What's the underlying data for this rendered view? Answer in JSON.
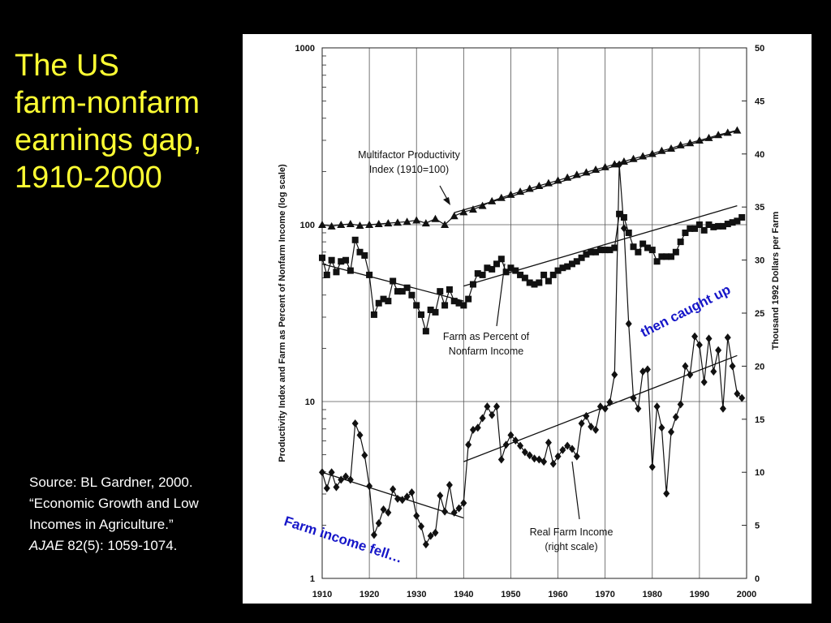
{
  "slide": {
    "title_lines": [
      "The US",
      "farm-nonfarm",
      "earnings gap,",
      "1910-2000"
    ],
    "source": {
      "line1": "Source: BL Gardner, 2000.",
      "line2": "“Economic Growth and Low",
      "line3": "Incomes in Agriculture.”",
      "journal": "AJAE",
      "citation": " 82(5): 1059-1074."
    }
  },
  "chart_data": {
    "type": "line",
    "x_ticks": [
      1910,
      1920,
      1930,
      1940,
      1950,
      1960,
      1970,
      1980,
      1990,
      2000
    ],
    "xlim": [
      1910,
      2000
    ],
    "y_left": {
      "label": "Productivity Index and Farm as Percent of Nonfarm Income (log scale)",
      "scale": "log",
      "ticks": [
        1,
        10,
        100,
        1000
      ],
      "lim": [
        1,
        1000
      ]
    },
    "y_right": {
      "label": "Thousand 1992 Dollars per Farm",
      "ticks": [
        0,
        5,
        10,
        15,
        20,
        25,
        30,
        35,
        40,
        45,
        50
      ],
      "lim": [
        0,
        50
      ]
    },
    "annotations": {
      "productivity": [
        "Multifactor Productivity",
        "Index (1910=100)"
      ],
      "farm_pct": [
        "Farm as Percent of",
        "Nonfarm Income"
      ],
      "real_income": [
        "Real Farm Income",
        "(right scale)"
      ],
      "fell": "Farm income fell…",
      "caught_up": "then caught up"
    },
    "series": [
      {
        "name": "Multifactor Productivity Index (1910=100)",
        "axis": "left",
        "marker": "triangle",
        "x": [
          1910,
          1912,
          1914,
          1916,
          1918,
          1920,
          1922,
          1924,
          1926,
          1928,
          1930,
          1932,
          1934,
          1936,
          1938,
          1940,
          1942,
          1944,
          1946,
          1948,
          1950,
          1952,
          1954,
          1956,
          1958,
          1960,
          1962,
          1964,
          1966,
          1968,
          1970,
          1972,
          1974,
          1976,
          1978,
          1980,
          1982,
          1984,
          1986,
          1988,
          1990,
          1992,
          1994,
          1996,
          1998
        ],
        "values": [
          100,
          98,
          100,
          101,
          99,
          100,
          101,
          102,
          103,
          104,
          106,
          102,
          108,
          100,
          112,
          118,
          122,
          128,
          136,
          142,
          148,
          154,
          160,
          166,
          172,
          178,
          185,
          192,
          198,
          205,
          212,
          220,
          228,
          236,
          244,
          252,
          262,
          270,
          282,
          290,
          300,
          310,
          322,
          332,
          342
        ]
      },
      {
        "name": "Farm as Percent of Nonfarm Income",
        "axis": "left",
        "marker": "square",
        "x": [
          1910,
          1911,
          1912,
          1913,
          1914,
          1915,
          1916,
          1917,
          1918,
          1919,
          1920,
          1921,
          1922,
          1923,
          1924,
          1925,
          1926,
          1927,
          1928,
          1929,
          1930,
          1931,
          1932,
          1933,
          1934,
          1935,
          1936,
          1937,
          1938,
          1939,
          1940,
          1941,
          1942,
          1943,
          1944,
          1945,
          1946,
          1947,
          1948,
          1949,
          1950,
          1951,
          1952,
          1953,
          1954,
          1955,
          1956,
          1957,
          1958,
          1959,
          1960,
          1961,
          1962,
          1963,
          1964,
          1965,
          1966,
          1967,
          1968,
          1969,
          1970,
          1971,
          1972,
          1973,
          1974,
          1975,
          1976,
          1977,
          1978,
          1979,
          1980,
          1981,
          1982,
          1983,
          1984,
          1985,
          1986,
          1987,
          1988,
          1989,
          1990,
          1991,
          1992,
          1993,
          1994,
          1995,
          1996,
          1997,
          1998,
          1999
        ],
        "values": [
          65,
          52,
          63,
          54,
          62,
          63,
          55,
          82,
          70,
          67,
          52,
          31,
          36,
          38,
          37,
          48,
          42,
          42,
          44,
          40,
          35,
          31,
          25,
          33,
          32,
          42,
          35,
          43,
          37,
          36,
          35,
          38,
          46,
          53,
          52,
          57,
          56,
          60,
          64,
          54,
          57,
          55,
          52,
          50,
          47,
          46,
          47,
          52,
          48,
          52,
          55,
          57,
          58,
          60,
          62,
          65,
          68,
          70,
          70,
          72,
          72,
          72,
          74,
          115,
          110,
          90,
          75,
          70,
          78,
          74,
          72,
          62,
          66,
          66,
          66,
          70,
          80,
          90,
          95,
          95,
          100,
          93,
          100,
          97,
          98,
          98,
          101,
          103,
          105,
          110
        ]
      },
      {
        "name": "Real Farm Income (right scale)",
        "axis": "right",
        "marker": "diamond",
        "x": [
          1910,
          1911,
          1912,
          1913,
          1914,
          1915,
          1916,
          1917,
          1918,
          1919,
          1920,
          1921,
          1922,
          1923,
          1924,
          1925,
          1926,
          1927,
          1928,
          1929,
          1930,
          1931,
          1932,
          1933,
          1934,
          1935,
          1936,
          1937,
          1938,
          1939,
          1940,
          1941,
          1942,
          1943,
          1944,
          1945,
          1946,
          1947,
          1948,
          1949,
          1950,
          1951,
          1952,
          1953,
          1954,
          1955,
          1956,
          1957,
          1958,
          1959,
          1960,
          1961,
          1962,
          1963,
          1964,
          1965,
          1966,
          1967,
          1968,
          1969,
          1970,
          1971,
          1972,
          1973,
          1974,
          1975,
          1976,
          1977,
          1978,
          1979,
          1980,
          1981,
          1982,
          1983,
          1984,
          1985,
          1986,
          1987,
          1988,
          1989,
          1990,
          1991,
          1992,
          1993,
          1994,
          1995,
          1996,
          1997,
          1998,
          1999
        ],
        "values": [
          10,
          8.5,
          10,
          8.6,
          9.3,
          9.6,
          9.3,
          14.6,
          13.5,
          11.6,
          8.7,
          4.1,
          5.2,
          6.5,
          6.2,
          8.4,
          7.5,
          7.4,
          7.7,
          8.1,
          5.9,
          4.9,
          3.2,
          4,
          4.3,
          7.8,
          6.3,
          8.8,
          6.2,
          6.6,
          7.1,
          12.6,
          14,
          14.2,
          15.1,
          16.2,
          15.4,
          16.2,
          11.2,
          12.6,
          13.5,
          13,
          12.5,
          11.9,
          11.6,
          11.3,
          11.2,
          11,
          12.8,
          10.8,
          11.5,
          12.1,
          12.5,
          12.2,
          11.5,
          14.6,
          15.3,
          14.3,
          14,
          16.2,
          16,
          16.6,
          19.2,
          39,
          33,
          24,
          17,
          16,
          19.5,
          19.7,
          10.5,
          16.2,
          14.2,
          8,
          13.8,
          15.2,
          16.4,
          20,
          19.2,
          22.8,
          22,
          18.5,
          22.6,
          19.5,
          21.5,
          16,
          22.7,
          20,
          17.4,
          17
        ]
      }
    ],
    "trend_lines": [
      {
        "series": "productivity",
        "axis": "left",
        "x": [
          1938,
          1998
        ],
        "values": [
          117,
          340
        ]
      },
      {
        "series": "farm_pct_early",
        "axis": "left",
        "x": [
          1910,
          1940
        ],
        "values": [
          60,
          37
        ]
      },
      {
        "series": "farm_pct_late",
        "axis": "left",
        "x": [
          1940,
          1998
        ],
        "values": [
          45,
          128
        ]
      },
      {
        "series": "real_income_early",
        "axis": "right",
        "x": [
          1910,
          1940
        ],
        "values": [
          10,
          5.7
        ]
      },
      {
        "series": "real_income_late",
        "axis": "right",
        "x": [
          1940,
          1998
        ],
        "values": [
          11,
          21
        ]
      }
    ]
  }
}
